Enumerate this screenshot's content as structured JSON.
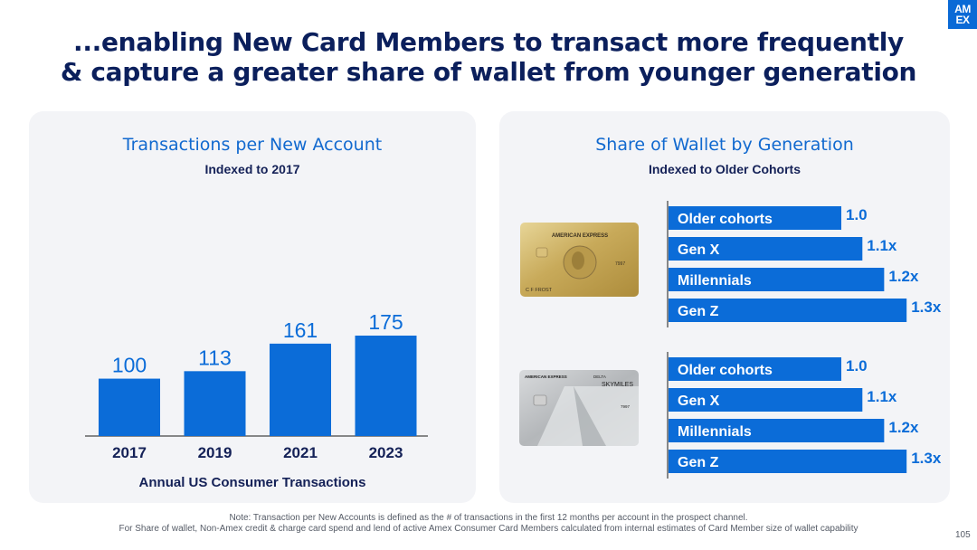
{
  "logo": {
    "line1": "AM",
    "line2": "EX"
  },
  "title": {
    "line1": "...enabling New Card Members to transact more frequently",
    "line2": "& capture a greater share of wallet from younger generation"
  },
  "colors": {
    "accent": "#0a6ad6",
    "bar": "#0b6cd8",
    "title": "#0b1f5c",
    "panel": "#f3f4f7"
  },
  "chart_data": [
    {
      "type": "bar",
      "title": "Transactions per New Account",
      "subtitle": "Indexed to 2017",
      "xlabel": "Annual US Consumer Transactions",
      "categories": [
        "2017",
        "2019",
        "2021",
        "2023"
      ],
      "values": [
        100,
        113,
        161,
        175
      ],
      "value_labels": [
        "100",
        "113",
        "161",
        "175"
      ],
      "ylim": [
        0,
        180
      ],
      "grid": false,
      "legend": "none"
    },
    {
      "type": "bar",
      "orientation": "horizontal",
      "title": "Share of Wallet by Generation",
      "subtitle": "Indexed to Older Cohorts",
      "groups": [
        {
          "card": "gold",
          "categories": [
            "Older cohorts",
            "Gen X",
            "Millennials",
            "Gen Z"
          ],
          "values": [
            1.0,
            1.1,
            1.2,
            1.3
          ],
          "value_labels": [
            "1.0",
            "1.1x",
            "1.2x",
            "1.3x"
          ]
        },
        {
          "card": "delta-platinum",
          "categories": [
            "Older cohorts",
            "Gen X",
            "Millennials",
            "Gen Z"
          ],
          "values": [
            1.0,
            1.1,
            1.2,
            1.3
          ],
          "value_labels": [
            "1.0",
            "1.1x",
            "1.2x",
            "1.3x"
          ]
        }
      ],
      "grid": false,
      "legend": "none"
    }
  ],
  "cards": {
    "gold": {
      "issuer": "AMERICAN EXPRESS",
      "holder": "C F FROST",
      "number": "7997"
    },
    "delta": {
      "issuer": "AMERICAN EXPRESS",
      "partner": "DELTA",
      "program": "SKYMILES",
      "number": "7997"
    }
  },
  "footnote": {
    "line1": "Note: Transaction per New Accounts is defined as the # of transactions in the first 12 months per account in the prospect channel.",
    "line2": "For Share of wallet, Non-Amex credit & charge card spend and lend of active Amex Consumer Card Members calculated from internal estimates of Card Member size of wallet capability"
  },
  "page_number": "105"
}
